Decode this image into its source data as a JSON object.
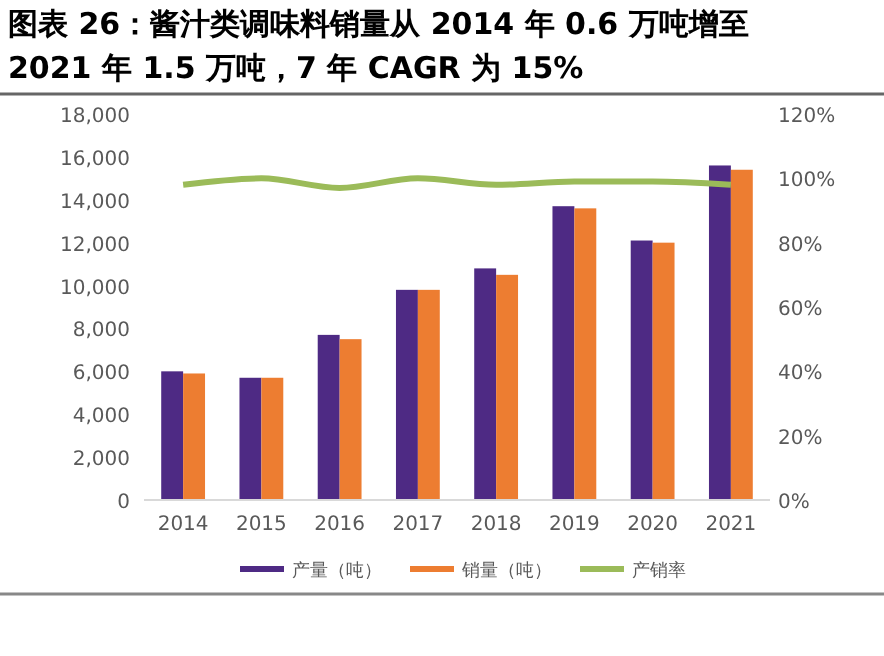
{
  "chart_data": {
    "type": "bar",
    "title": "图表 26：酱汁类调味料销量从 2014 年 0.6 万吨增至 2021 年 1.5 万吨，7 年 CAGR 为 15%",
    "categories": [
      "2014",
      "2015",
      "2016",
      "2017",
      "2018",
      "2019",
      "2020",
      "2021"
    ],
    "series": [
      {
        "name": "产量（吨）",
        "color": "#4e2a84",
        "values": [
          6000,
          5700,
          7700,
          9800,
          10800,
          13700,
          12100,
          15600
        ]
      },
      {
        "name": "销量（吨）",
        "color": "#ed7d31",
        "values": [
          5900,
          5700,
          7500,
          9800,
          10500,
          13600,
          12000,
          15400
        ]
      },
      {
        "name": "产销率",
        "type": "line",
        "axis": "y2",
        "color": "#9bbb59",
        "values": [
          98,
          100,
          97,
          100,
          98,
          99,
          99,
          98
        ]
      }
    ],
    "ylim": [
      0,
      18000
    ],
    "yticks": [
      {
        "value": 0,
        "label": "0"
      },
      {
        "value": 2000,
        "label": "2,000"
      },
      {
        "value": 4000,
        "label": "4,000"
      },
      {
        "value": 6000,
        "label": "6,000"
      },
      {
        "value": 8000,
        "label": "8,000"
      },
      {
        "value": 10000,
        "label": "10,000"
      },
      {
        "value": 12000,
        "label": "12,000"
      },
      {
        "value": 14000,
        "label": "14,000"
      },
      {
        "value": 16000,
        "label": "16,000"
      },
      {
        "value": 18000,
        "label": "18,000"
      }
    ],
    "y2lim": [
      0,
      120
    ],
    "y2ticks": [
      {
        "value": 0,
        "label": "0%"
      },
      {
        "value": 20,
        "label": "20%"
      },
      {
        "value": 40,
        "label": "40%"
      },
      {
        "value": 60,
        "label": "60%"
      },
      {
        "value": 80,
        "label": "80%"
      },
      {
        "value": 100,
        "label": "100%"
      },
      {
        "value": 120,
        "label": "120%"
      }
    ],
    "grid": false,
    "legend": "bottom",
    "marker": "none"
  }
}
